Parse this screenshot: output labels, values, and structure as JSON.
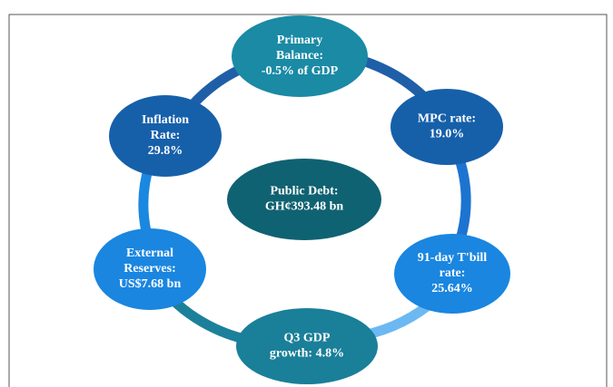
{
  "nodes": [
    {
      "id": "primary",
      "lines": [
        "Primary",
        "Balance:",
        "-0.5% of GDP"
      ]
    },
    {
      "id": "mpc",
      "lines": [
        "MPC rate:",
        "19.0%"
      ]
    },
    {
      "id": "tbill",
      "lines": [
        "91-day T'bill",
        "rate:",
        "25.64%"
      ]
    },
    {
      "id": "gdp",
      "lines": [
        "Q3 GDP",
        "growth:  4.8%"
      ]
    },
    {
      "id": "reserves",
      "lines": [
        "External",
        "Reserves:",
        "US$7.68 bn"
      ]
    },
    {
      "id": "inflation",
      "lines": [
        "Inflation",
        "Rate:",
        "29.8%"
      ]
    },
    {
      "id": "debt",
      "lines": [
        "Public Debt:",
        "GH¢393.48 bn"
      ]
    }
  ]
}
